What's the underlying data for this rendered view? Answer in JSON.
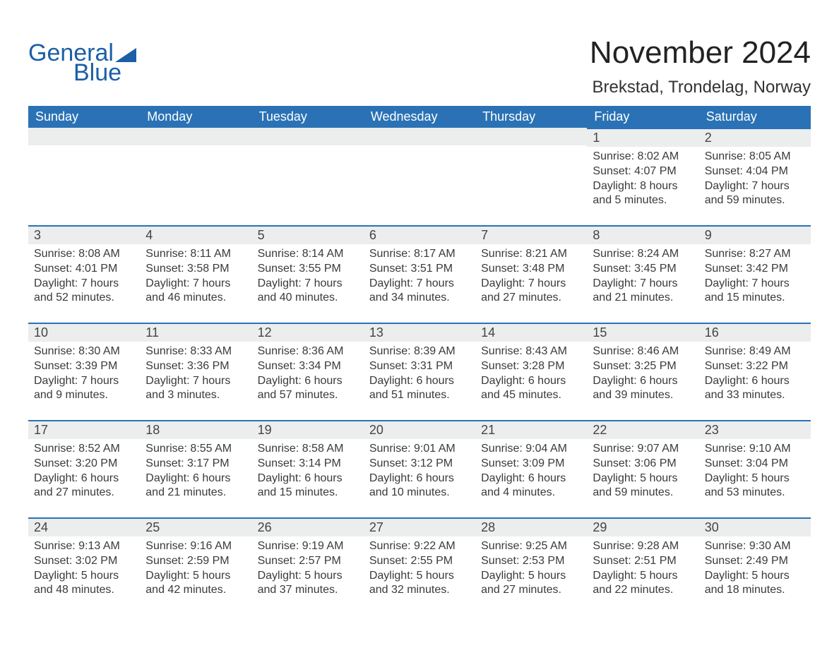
{
  "brand": {
    "word1": "General",
    "word2": "Blue",
    "brand_color": "#1b5fa6"
  },
  "title": {
    "month": "November 2024",
    "location": "Brekstad, Trondelag, Norway"
  },
  "colors": {
    "header_bg": "#2a72b5",
    "header_text": "#ffffff",
    "daynum_bg": "#eceded",
    "row_border": "#2a72b5",
    "body_text": "#3a3a3a",
    "page_bg": "#ffffff"
  },
  "weekdays": [
    "Sunday",
    "Monday",
    "Tuesday",
    "Wednesday",
    "Thursday",
    "Friday",
    "Saturday"
  ],
  "leading_blanks": 5,
  "days": [
    {
      "n": 1,
      "sunrise": "8:02 AM",
      "sunset": "4:07 PM",
      "daylight": "8 hours and 5 minutes."
    },
    {
      "n": 2,
      "sunrise": "8:05 AM",
      "sunset": "4:04 PM",
      "daylight": "7 hours and 59 minutes."
    },
    {
      "n": 3,
      "sunrise": "8:08 AM",
      "sunset": "4:01 PM",
      "daylight": "7 hours and 52 minutes."
    },
    {
      "n": 4,
      "sunrise": "8:11 AM",
      "sunset": "3:58 PM",
      "daylight": "7 hours and 46 minutes."
    },
    {
      "n": 5,
      "sunrise": "8:14 AM",
      "sunset": "3:55 PM",
      "daylight": "7 hours and 40 minutes."
    },
    {
      "n": 6,
      "sunrise": "8:17 AM",
      "sunset": "3:51 PM",
      "daylight": "7 hours and 34 minutes."
    },
    {
      "n": 7,
      "sunrise": "8:21 AM",
      "sunset": "3:48 PM",
      "daylight": "7 hours and 27 minutes."
    },
    {
      "n": 8,
      "sunrise": "8:24 AM",
      "sunset": "3:45 PM",
      "daylight": "7 hours and 21 minutes."
    },
    {
      "n": 9,
      "sunrise": "8:27 AM",
      "sunset": "3:42 PM",
      "daylight": "7 hours and 15 minutes."
    },
    {
      "n": 10,
      "sunrise": "8:30 AM",
      "sunset": "3:39 PM",
      "daylight": "7 hours and 9 minutes."
    },
    {
      "n": 11,
      "sunrise": "8:33 AM",
      "sunset": "3:36 PM",
      "daylight": "7 hours and 3 minutes."
    },
    {
      "n": 12,
      "sunrise": "8:36 AM",
      "sunset": "3:34 PM",
      "daylight": "6 hours and 57 minutes."
    },
    {
      "n": 13,
      "sunrise": "8:39 AM",
      "sunset": "3:31 PM",
      "daylight": "6 hours and 51 minutes."
    },
    {
      "n": 14,
      "sunrise": "8:43 AM",
      "sunset": "3:28 PM",
      "daylight": "6 hours and 45 minutes."
    },
    {
      "n": 15,
      "sunrise": "8:46 AM",
      "sunset": "3:25 PM",
      "daylight": "6 hours and 39 minutes."
    },
    {
      "n": 16,
      "sunrise": "8:49 AM",
      "sunset": "3:22 PM",
      "daylight": "6 hours and 33 minutes."
    },
    {
      "n": 17,
      "sunrise": "8:52 AM",
      "sunset": "3:20 PM",
      "daylight": "6 hours and 27 minutes."
    },
    {
      "n": 18,
      "sunrise": "8:55 AM",
      "sunset": "3:17 PM",
      "daylight": "6 hours and 21 minutes."
    },
    {
      "n": 19,
      "sunrise": "8:58 AM",
      "sunset": "3:14 PM",
      "daylight": "6 hours and 15 minutes."
    },
    {
      "n": 20,
      "sunrise": "9:01 AM",
      "sunset": "3:12 PM",
      "daylight": "6 hours and 10 minutes."
    },
    {
      "n": 21,
      "sunrise": "9:04 AM",
      "sunset": "3:09 PM",
      "daylight": "6 hours and 4 minutes."
    },
    {
      "n": 22,
      "sunrise": "9:07 AM",
      "sunset": "3:06 PM",
      "daylight": "5 hours and 59 minutes."
    },
    {
      "n": 23,
      "sunrise": "9:10 AM",
      "sunset": "3:04 PM",
      "daylight": "5 hours and 53 minutes."
    },
    {
      "n": 24,
      "sunrise": "9:13 AM",
      "sunset": "3:02 PM",
      "daylight": "5 hours and 48 minutes."
    },
    {
      "n": 25,
      "sunrise": "9:16 AM",
      "sunset": "2:59 PM",
      "daylight": "5 hours and 42 minutes."
    },
    {
      "n": 26,
      "sunrise": "9:19 AM",
      "sunset": "2:57 PM",
      "daylight": "5 hours and 37 minutes."
    },
    {
      "n": 27,
      "sunrise": "9:22 AM",
      "sunset": "2:55 PM",
      "daylight": "5 hours and 32 minutes."
    },
    {
      "n": 28,
      "sunrise": "9:25 AM",
      "sunset": "2:53 PM",
      "daylight": "5 hours and 27 minutes."
    },
    {
      "n": 29,
      "sunrise": "9:28 AM",
      "sunset": "2:51 PM",
      "daylight": "5 hours and 22 minutes."
    },
    {
      "n": 30,
      "sunrise": "9:30 AM",
      "sunset": "2:49 PM",
      "daylight": "5 hours and 18 minutes."
    }
  ],
  "labels": {
    "sunrise": "Sunrise: ",
    "sunset": "Sunset: ",
    "daylight": "Daylight: "
  }
}
